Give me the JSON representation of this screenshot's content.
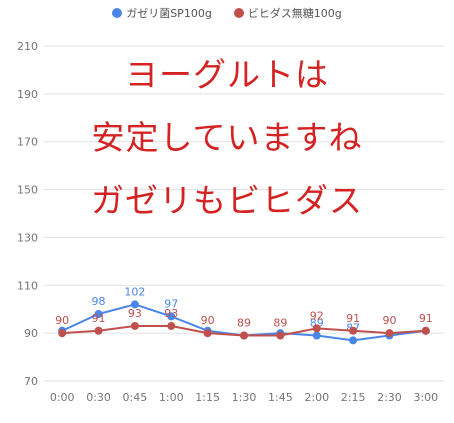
{
  "legend": {
    "series1": "ガゼリ菌SP100g",
    "series2": "ビヒダス無糖100g"
  },
  "overlay_text": {
    "line1": "ヨーグルトは",
    "line2": "安定していますね",
    "line3": "ガゼリもビヒダス"
  },
  "colors": {
    "series1": "#4a86e8",
    "series2": "#c0504d",
    "overlay": "#d42323",
    "grid": "#e0e0e0"
  },
  "chart_data": {
    "type": "line",
    "categories": [
      "0:00",
      "0:30",
      "0:45",
      "1:00",
      "1:15",
      "1:30",
      "1:45",
      "2:00",
      "2:15",
      "2:30",
      "3:00"
    ],
    "series": [
      {
        "name": "ガゼリ菌SP100g",
        "values": [
          91,
          98,
          102,
          97,
          91,
          89,
          90,
          89,
          87,
          89,
          91
        ],
        "labels": [
          "",
          "98",
          "102",
          "97",
          "",
          "",
          "",
          "89",
          "87",
          "",
          ""
        ]
      },
      {
        "name": "ビヒダス無糖100g",
        "values": [
          90,
          91,
          93,
          93,
          90,
          89,
          89,
          92,
          91,
          90,
          91
        ],
        "labels": [
          "90",
          "91",
          "93",
          "93",
          "90",
          "89",
          "89",
          "92",
          "91",
          "90",
          "91"
        ]
      }
    ],
    "y_ticks": [
      "70",
      "90",
      "110",
      "130",
      "150",
      "170",
      "190",
      "210"
    ],
    "ylim": [
      70,
      210
    ],
    "grid": true,
    "legend_position": "top"
  }
}
